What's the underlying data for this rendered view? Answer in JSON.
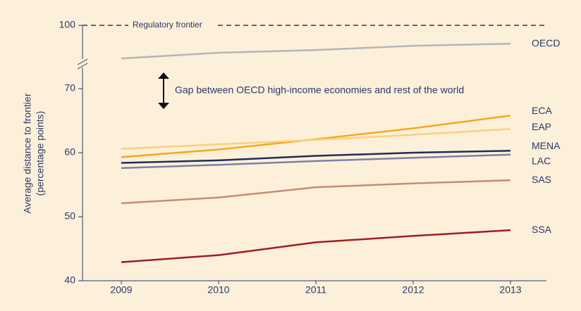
{
  "chart_data": {
    "type": "line",
    "y_label": [
      "Average distance to frontier",
      "(percentage points)"
    ],
    "categories": [
      "2009",
      "2010",
      "2011",
      "2012",
      "2013"
    ],
    "series": [
      {
        "name": "OECD",
        "color": "#b5b5b5",
        "values": [
          84.3,
          87,
          88.3,
          90.3,
          91.3
        ]
      },
      {
        "name": "ECA",
        "color": "#f6a81c",
        "values": [
          59.3,
          60.5,
          62.1,
          63.8,
          65.8
        ]
      },
      {
        "name": "EAP",
        "color": "#f9cf82",
        "values": [
          60.6,
          61.3,
          62.0,
          62.8,
          63.7
        ]
      },
      {
        "name": "MENA",
        "color": "#1f2d5a",
        "values": [
          58.4,
          58.8,
          59.5,
          60.0,
          60.3
        ]
      },
      {
        "name": "LAC",
        "color": "#7e80a6",
        "values": [
          57.6,
          58.1,
          58.7,
          59.2,
          59.7
        ]
      },
      {
        "name": "SAS",
        "color": "#c98a74",
        "values": [
          52.1,
          53.0,
          54.6,
          55.2,
          55.7
        ]
      },
      {
        "name": "SSA",
        "color": "#a01d22",
        "values": [
          42.9,
          44.0,
          46.0,
          47.0,
          47.9
        ]
      }
    ],
    "ylim": [
      40,
      100
    ],
    "yticks": [
      40,
      50,
      60,
      70,
      100
    ],
    "y_break": 82,
    "frontier": {
      "value": 100,
      "label": "Regulatory frontier"
    },
    "annotation": "Gap between OECD high-income economies and rest of the world"
  }
}
